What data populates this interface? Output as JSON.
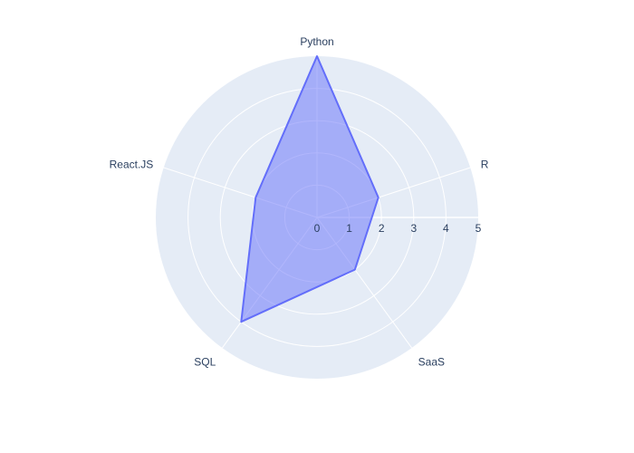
{
  "chart_data": {
    "type": "radar",
    "title": "",
    "categories": [
      "Python",
      "R",
      "SaaS",
      "SQL",
      "React.JS"
    ],
    "series": [
      {
        "values": [
          5,
          2,
          2,
          4,
          2
        ]
      }
    ],
    "radial_range": [
      0,
      5
    ],
    "radial_ticks": [
      "0",
      "1",
      "2",
      "3",
      "4",
      "5"
    ],
    "angular_direction": "clockwise",
    "first_category_position": "top",
    "grid": true,
    "legend": "none",
    "colors": {
      "polar_background": "#e5ecf6",
      "grid": "#ffffff",
      "series_line": "#636efa",
      "series_fill": "rgba(99, 110, 250, 0.5)",
      "text": "#2a3f5f"
    }
  }
}
